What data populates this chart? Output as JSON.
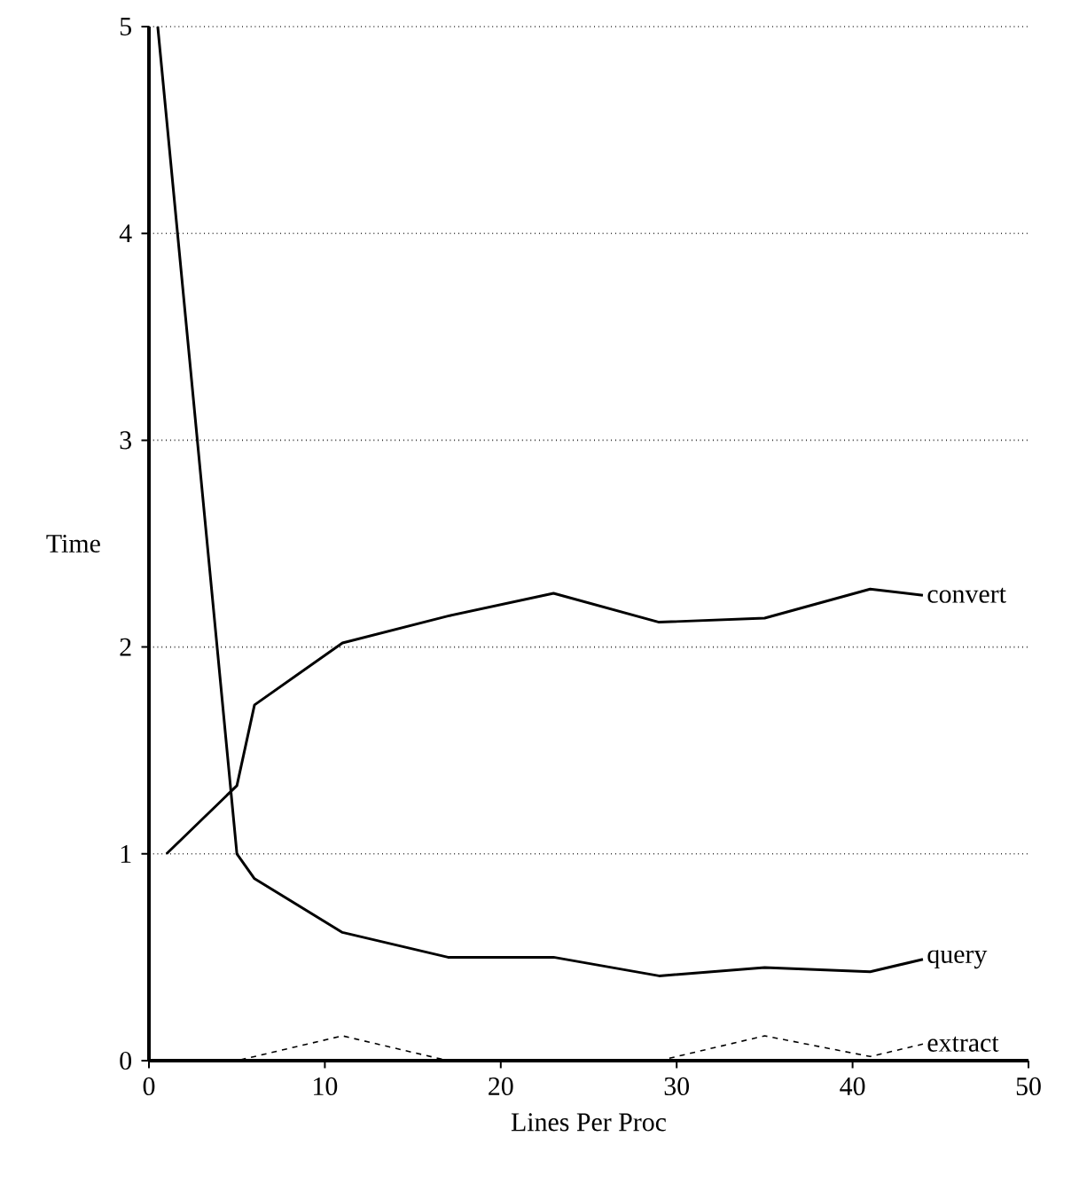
{
  "chart_data": {
    "type": "line",
    "xlabel": "Lines Per Proc",
    "ylabel": "Time",
    "xlim": [
      0,
      50
    ],
    "ylim": [
      0,
      5
    ],
    "xticks": [
      0,
      10,
      20,
      30,
      40,
      50
    ],
    "yticks": [
      0,
      1,
      2,
      3,
      4,
      5
    ],
    "grid": "y",
    "legend": false,
    "marker": "none",
    "series": [
      {
        "name": "convert",
        "color": "#000000",
        "line_style": "solid",
        "x": [
          1,
          5,
          6,
          11,
          17,
          23,
          29,
          35,
          41,
          44
        ],
        "values": [
          1.0,
          1.33,
          1.72,
          2.02,
          2.15,
          2.26,
          2.12,
          2.14,
          2.28,
          2.25
        ]
      },
      {
        "name": "query",
        "color": "#000000",
        "line_style": "solid",
        "x": [
          0.5,
          5,
          6,
          11,
          17,
          23,
          29,
          35,
          41,
          44
        ],
        "values": [
          5.0,
          1.0,
          0.88,
          0.62,
          0.5,
          0.5,
          0.41,
          0.45,
          0.43,
          0.49
        ]
      },
      {
        "name": "extract",
        "color": "#000000",
        "line_style": "dashed",
        "x": [
          1,
          5,
          11,
          17,
          23,
          29,
          35,
          41,
          44
        ],
        "values": [
          0.0,
          0.0,
          0.12,
          0.0,
          0.0,
          0.0,
          0.12,
          0.02,
          0.08
        ]
      }
    ]
  }
}
